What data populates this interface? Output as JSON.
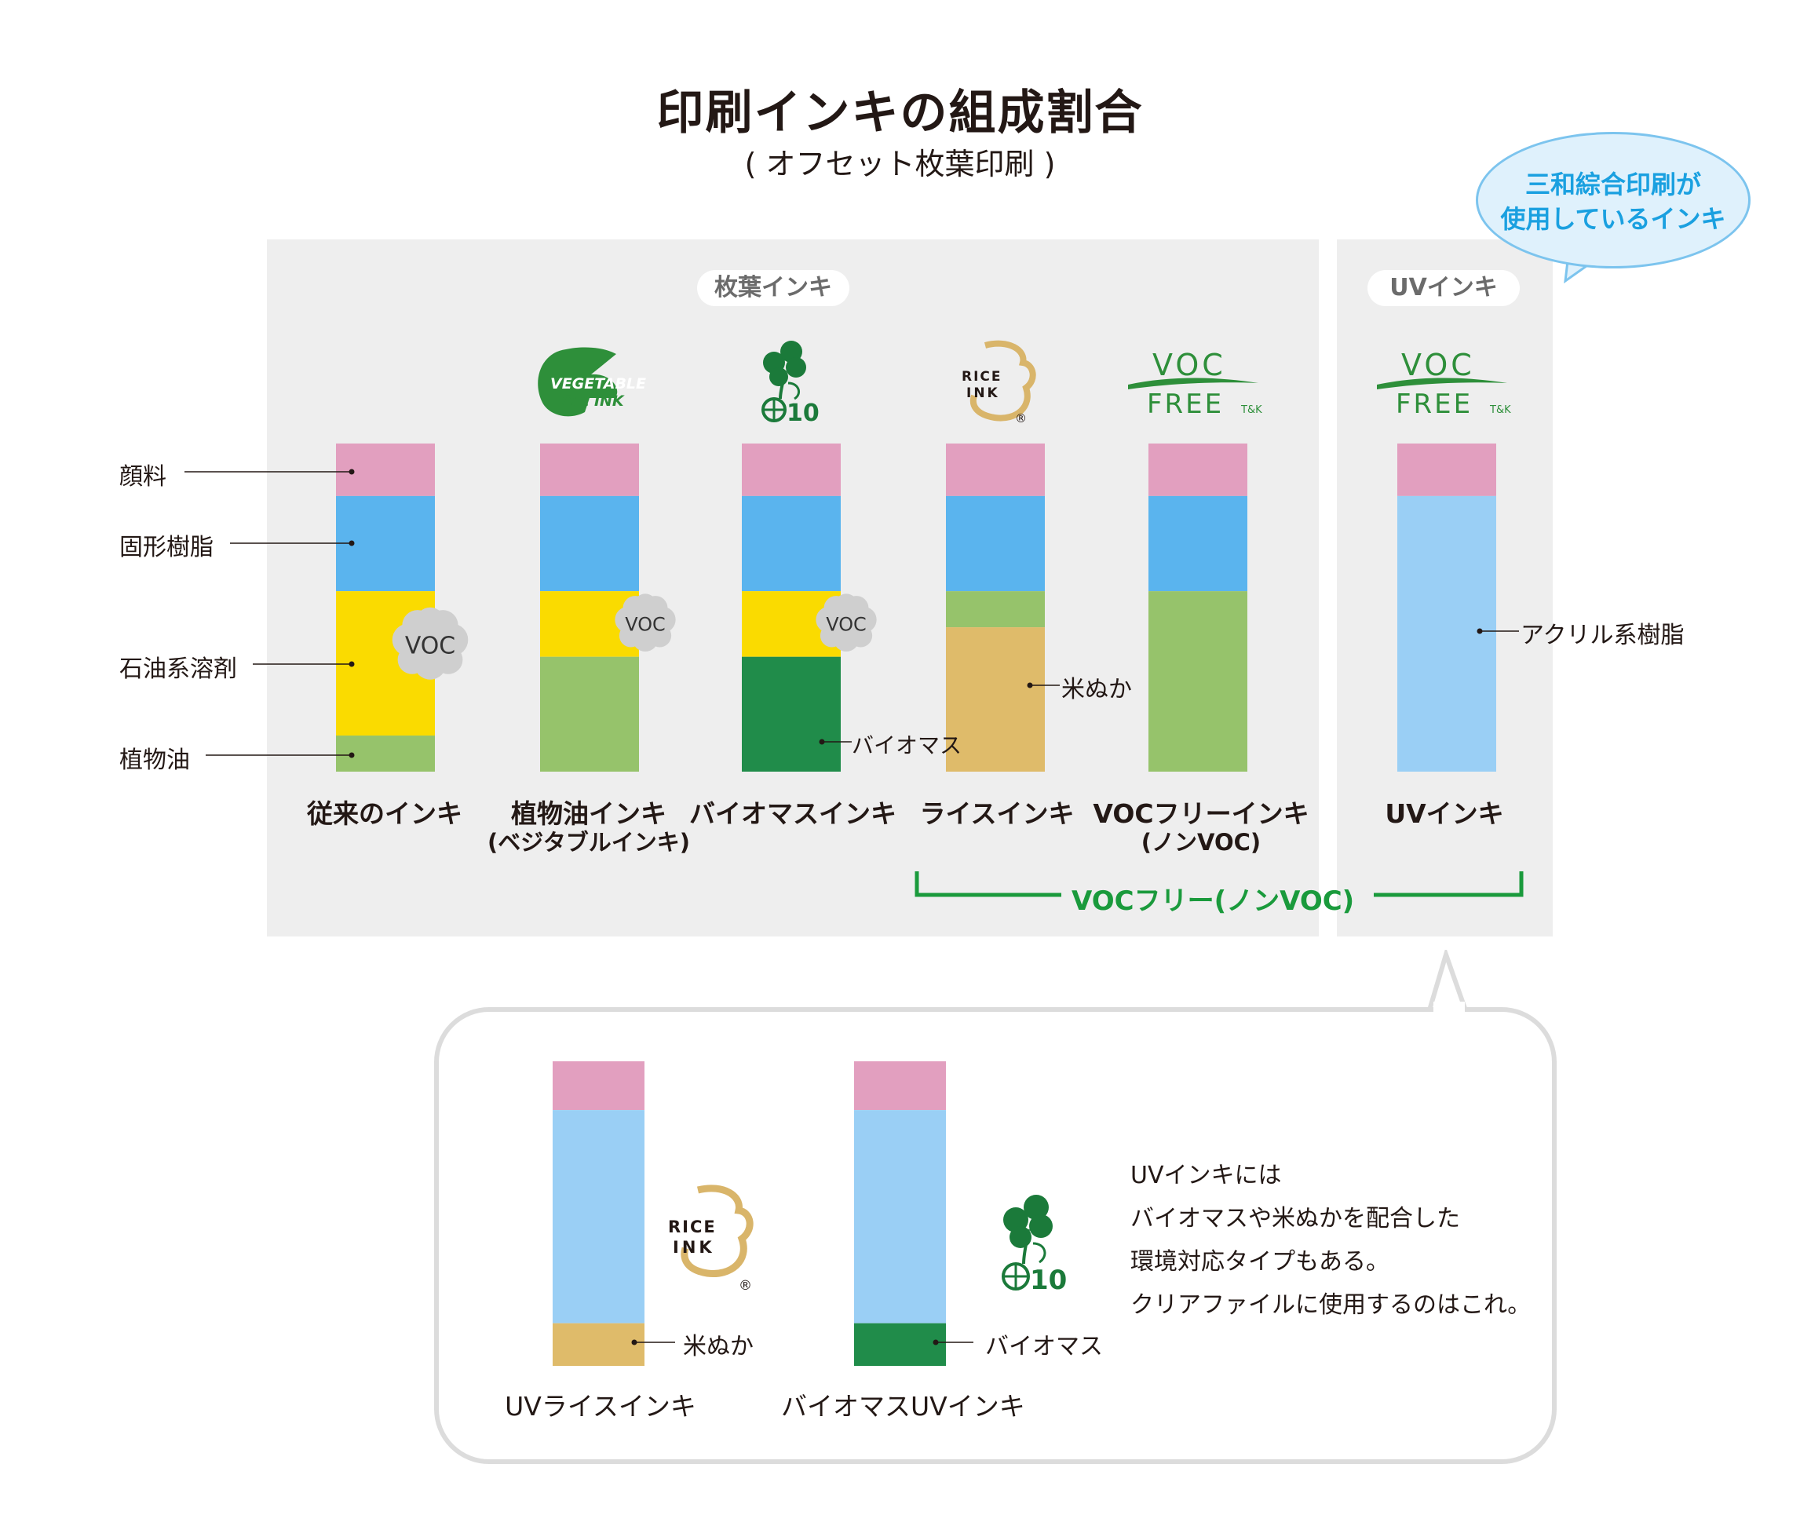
{
  "header": {
    "title": "印刷インキの組成割合",
    "subtitle": "( オフセット枚葉印刷 )"
  },
  "panel_labels": {
    "sheetfed": "枚葉インキ",
    "uv": "UVインキ"
  },
  "speech_bubble": {
    "line1": "三和綜合印刷が",
    "line2": "使用しているインキ"
  },
  "component_labels": [
    "顔料",
    "固形樹脂",
    "石油系溶剤",
    "植物油"
  ],
  "voc_free_bracket": "VOCフリー(ノンVOC)",
  "logos": {
    "vegetable_oil_ink": "VEGETABLE\nOIL INK",
    "rice_ink_line1": "RICE",
    "rice_ink_line2": "INK",
    "rice_ink_mark": "®",
    "voc_free_line1": "VOC",
    "voc_free_line2": "FREE",
    "voc_free_small": "T&K",
    "biomass_number": "10"
  },
  "colors": {
    "pigment": "#e29fbf",
    "solid_resin": "#5ab4ee",
    "petroleum_solvent": "#fadb00",
    "vegetable_oil": "#96c36b",
    "biomass": "#208c4a",
    "rice_bran": "#dfbb6a",
    "acrylic_resin": "#9acff5",
    "voc_cloud": "#cfcfcf",
    "accent_green": "#1a9a3c",
    "bubble_blue": "#1aa0e0"
  },
  "chart_data": [
    {
      "type": "bar",
      "stacked": true,
      "unit": "share of bar height (0-1)",
      "categories": [
        "従来のインキ",
        "植物油インキ",
        "バイオマスインキ",
        "ライスインキ",
        "VOCフリーインキ",
        "UVインキ"
      ],
      "category_sublabels": [
        "",
        "(ベジタブルインキ)",
        "",
        "",
        "(ノンVOC)",
        ""
      ],
      "series": [
        {
          "name": "顔料",
          "color": "#e29fbf",
          "values": [
            0.16,
            0.16,
            0.16,
            0.16,
            0.16,
            0.16
          ]
        },
        {
          "name": "固形樹脂",
          "color": "#5ab4ee",
          "values": [
            0.29,
            0.29,
            0.29,
            0.29,
            0.29,
            0
          ]
        },
        {
          "name": "石油系溶剤",
          "color": "#fadb00",
          "values": [
            0.44,
            0.2,
            0.2,
            0,
            0,
            0
          ]
        },
        {
          "name": "植物油",
          "color": "#96c36b",
          "values": [
            0.11,
            0.35,
            0,
            0.11,
            0.55,
            0
          ]
        },
        {
          "name": "バイオマス",
          "color": "#208c4a",
          "values": [
            0,
            0,
            0.35,
            0,
            0,
            0
          ]
        },
        {
          "name": "米ぬか",
          "color": "#dfbb6a",
          "values": [
            0,
            0,
            0,
            0.44,
            0,
            0
          ]
        },
        {
          "name": "アクリル系樹脂",
          "color": "#9acff5",
          "values": [
            0,
            0,
            0,
            0,
            0,
            0.84
          ]
        }
      ],
      "annotations": [
        {
          "category": "従来のインキ",
          "text": "VOC"
        },
        {
          "category": "植物油インキ",
          "text": "VOC"
        },
        {
          "category": "バイオマスインキ",
          "text": "VOC"
        },
        {
          "category": "バイオマスインキ",
          "text": "バイオマス"
        },
        {
          "category": "ライスインキ",
          "text": "米ぬか"
        },
        {
          "category": "UVインキ",
          "text": "アクリル系樹脂"
        }
      ]
    },
    {
      "type": "bar",
      "stacked": true,
      "unit": "share of bar height (0-1)",
      "categories": [
        "UVライスインキ",
        "バイオマスUVインキ"
      ],
      "series": [
        {
          "name": "顔料",
          "color": "#e29fbf",
          "values": [
            0.16,
            0.16
          ]
        },
        {
          "name": "アクリル系樹脂",
          "color": "#9acff5",
          "values": [
            0.7,
            0.7
          ]
        },
        {
          "name": "米ぬか",
          "color": "#dfbb6a",
          "values": [
            0.14,
            0
          ]
        },
        {
          "name": "バイオマス",
          "color": "#208c4a",
          "values": [
            0,
            0.14
          ]
        }
      ],
      "annotations": [
        {
          "category": "UVライスインキ",
          "text": "米ぬか"
        },
        {
          "category": "バイオマスUVインキ",
          "text": "バイオマス"
        }
      ]
    }
  ],
  "note": {
    "line1": "UVインキには",
    "line2": "バイオマスや米ぬかを配合した",
    "line3": "環境対応タイプもある。",
    "line4": "クリアファイルに使用するのはこれ。"
  }
}
